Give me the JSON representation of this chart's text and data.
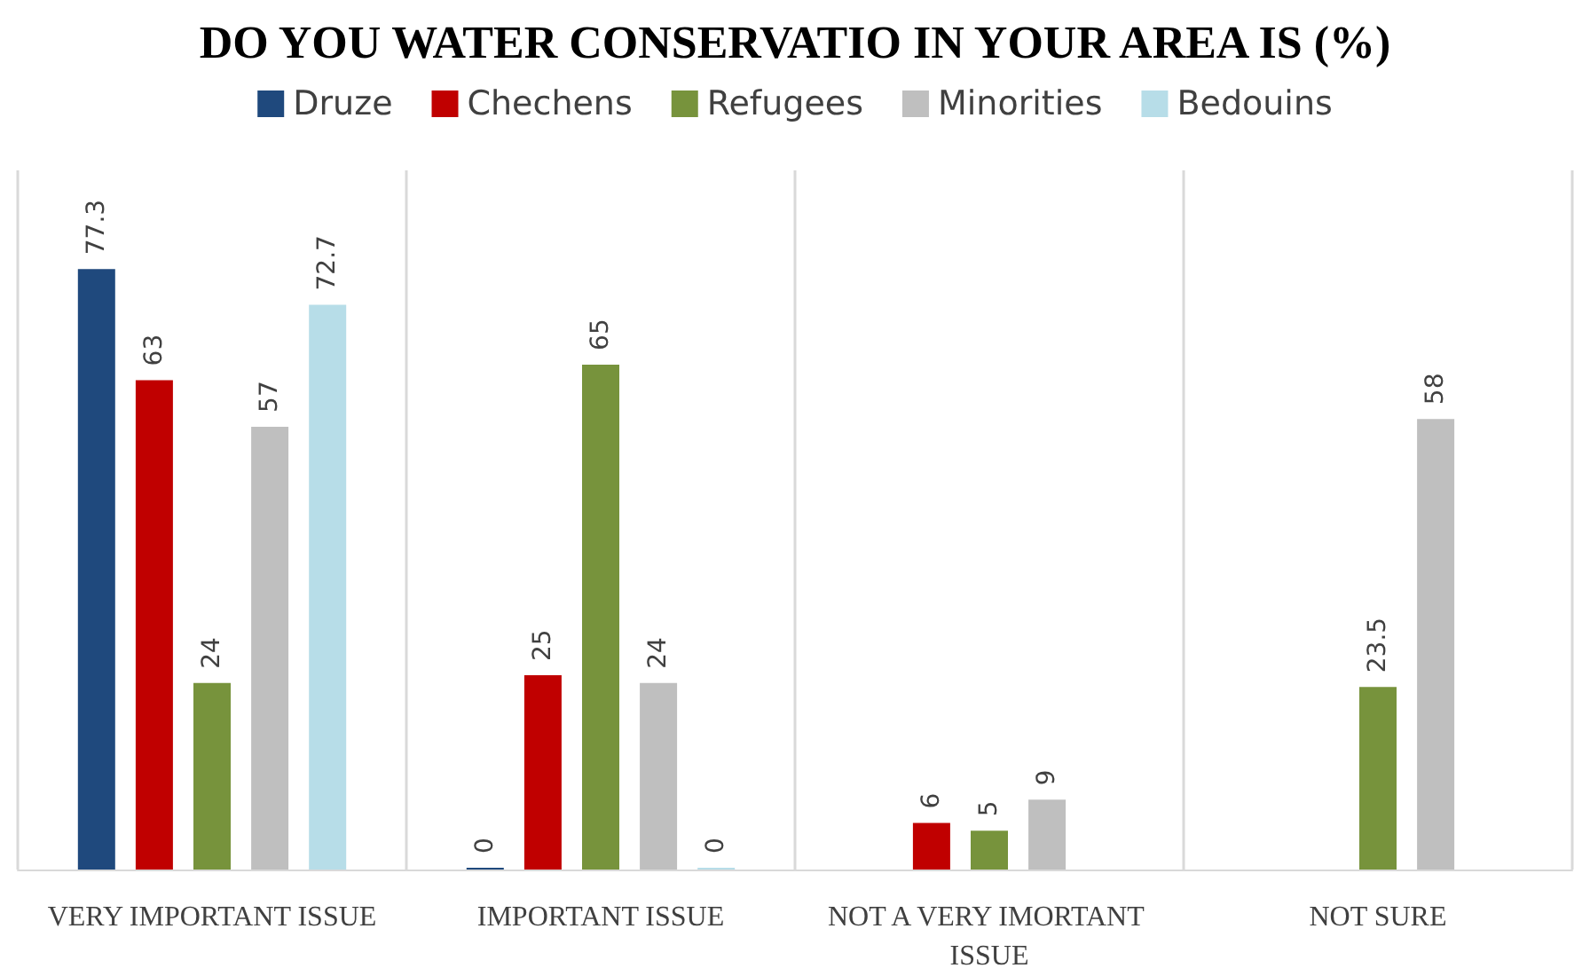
{
  "chart_data": {
    "type": "bar",
    "title": "DO YOU WATER CONSERVATIO IN YOUR AREA IS (%)",
    "categories": [
      "VERY IMPORTANT ISSUE",
      "IMPORTANT ISSUE",
      "NOT A VERY IMORTANT ISSUE",
      "NOT SURE"
    ],
    "series": [
      {
        "name": "Druze",
        "color": "#1f497d",
        "values": [
          77.3,
          0,
          null,
          null
        ]
      },
      {
        "name": "Chechens",
        "color": "#c00000",
        "values": [
          63,
          25,
          6,
          null
        ]
      },
      {
        "name": "Refugees",
        "color": "#77933c",
        "values": [
          24,
          65,
          5,
          23.5
        ]
      },
      {
        "name": "Minorities",
        "color": "#bfbfbf",
        "values": [
          57,
          24,
          9,
          58
        ]
      },
      {
        "name": "Bedouins",
        "color": "#b7dde8",
        "values": [
          72.7,
          0,
          null,
          null
        ]
      }
    ],
    "ylim": [
      0,
      90
    ],
    "data_labels": true,
    "legend": "top",
    "grid": "x",
    "tick_labels": "x"
  }
}
